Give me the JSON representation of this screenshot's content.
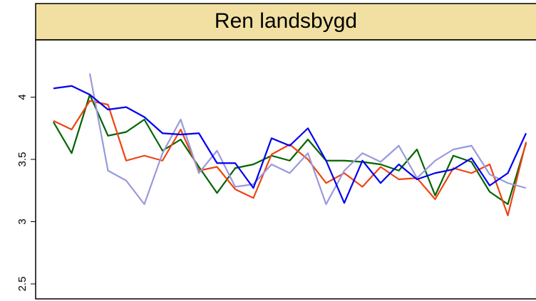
{
  "chart_data": {
    "type": "line",
    "title": "Ren landsbygd",
    "categories": [
      null,
      null,
      null,
      null,
      null,
      null,
      null,
      null,
      null,
      null,
      null,
      null,
      null,
      null,
      null,
      null,
      null,
      null,
      null,
      null,
      null,
      null,
      null,
      null,
      null,
      null,
      null
    ],
    "ylim": [
      2.38,
      4.46
    ],
    "yticks": [
      2.5,
      3,
      3.5,
      4
    ],
    "series": [
      {
        "color": "#006400",
        "values": [
          3.8,
          3.55,
          4.02,
          3.69,
          3.72,
          3.82,
          3.57,
          3.66,
          3.44,
          3.23,
          3.43,
          3.46,
          3.53,
          3.49,
          3.66,
          3.49,
          3.49,
          3.48,
          3.46,
          3.41,
          3.58,
          3.21,
          3.53,
          3.48,
          3.24,
          3.14,
          3.63
        ]
      },
      {
        "color": "#ee4411",
        "values": [
          3.81,
          3.74,
          3.97,
          3.94,
          3.49,
          3.53,
          3.49,
          3.74,
          3.41,
          3.44,
          3.26,
          3.19,
          3.54,
          3.62,
          3.5,
          3.31,
          3.39,
          3.28,
          3.44,
          3.34,
          3.35,
          3.18,
          3.43,
          3.39,
          3.46,
          3.05,
          3.64
        ]
      },
      {
        "color": "#9999dd",
        "values": [
          null,
          null,
          4.19,
          3.41,
          3.33,
          3.14,
          3.55,
          3.82,
          3.39,
          3.57,
          3.28,
          3.3,
          3.46,
          3.39,
          3.55,
          3.14,
          3.41,
          3.55,
          3.48,
          3.61,
          3.35,
          3.49,
          3.58,
          3.61,
          3.38,
          3.31,
          3.27
        ]
      },
      {
        "color": "#0000ee",
        "values": [
          4.07,
          4.09,
          4.02,
          3.9,
          3.92,
          3.84,
          3.71,
          3.7,
          3.71,
          3.47,
          3.47,
          3.27,
          3.67,
          3.61,
          3.75,
          3.49,
          3.15,
          3.49,
          3.31,
          3.46,
          3.34,
          3.39,
          3.42,
          3.51,
          3.29,
          3.39,
          3.71
        ]
      }
    ]
  }
}
